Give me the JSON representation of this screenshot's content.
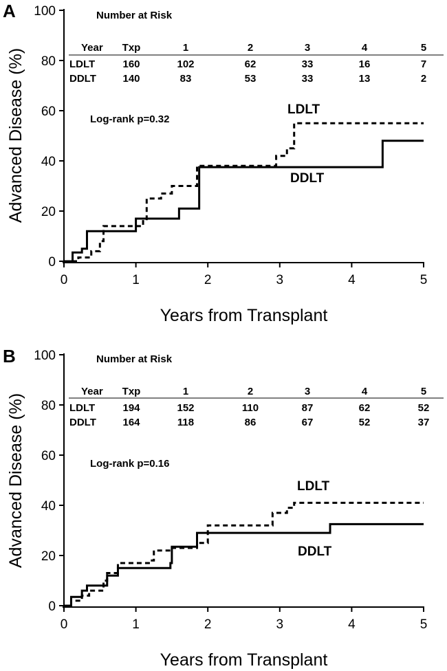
{
  "colors": {
    "line": "#000000",
    "background": "#ffffff"
  },
  "chart_data": [
    {
      "panel": "A",
      "type": "line",
      "step": true,
      "xlabel": "Years from Transplant",
      "ylabel": "Advanced Disease (%)",
      "xlim": [
        0,
        5
      ],
      "ylim": [
        0,
        100
      ],
      "xticks": [
        0,
        1,
        2,
        3,
        4,
        5
      ],
      "yticks": [
        0,
        20,
        40,
        60,
        80,
        100
      ],
      "grid": false,
      "annotation": "Log-rank p=0.32",
      "risk_table": {
        "title": "Number at Risk",
        "header": [
          "Year",
          "Txp",
          "1",
          "2",
          "3",
          "4",
          "5"
        ],
        "rows": [
          [
            "LDLT",
            "160",
            "102",
            "62",
            "33",
            "16",
            "7"
          ],
          [
            "DDLT",
            "140",
            "83",
            "53",
            "33",
            "13",
            "2"
          ]
        ]
      },
      "series": [
        {
          "name": "LDLT",
          "style": "dashed",
          "points": [
            [
              0,
              0
            ],
            [
              0.2,
              1.5
            ],
            [
              0.38,
              4
            ],
            [
              0.5,
              8
            ],
            [
              0.55,
              14
            ],
            [
              1.1,
              16
            ],
            [
              1.15,
              25
            ],
            [
              1.35,
              27
            ],
            [
              1.5,
              30
            ],
            [
              1.85,
              38
            ],
            [
              2.9,
              38
            ],
            [
              2.95,
              42
            ],
            [
              3.1,
              45
            ],
            [
              3.2,
              55
            ],
            [
              5,
              55
            ]
          ]
        },
        {
          "name": "DDLT",
          "style": "solid",
          "points": [
            [
              0,
              0
            ],
            [
              0.12,
              3.5
            ],
            [
              0.25,
              5
            ],
            [
              0.32,
              12
            ],
            [
              0.98,
              12
            ],
            [
              1,
              17
            ],
            [
              1.55,
              17
            ],
            [
              1.6,
              21
            ],
            [
              1.87,
              21
            ],
            [
              1.88,
              37.5
            ],
            [
              4.4,
              37.5
            ],
            [
              4.43,
              48
            ],
            [
              5,
              48
            ]
          ]
        }
      ]
    },
    {
      "panel": "B",
      "type": "line",
      "step": true,
      "xlabel": "Years from Transplant",
      "ylabel": "Advanced Disease (%)",
      "xlim": [
        0,
        5
      ],
      "ylim": [
        0,
        100
      ],
      "xticks": [
        0,
        1,
        2,
        3,
        4,
        5
      ],
      "yticks": [
        0,
        20,
        40,
        60,
        80,
        100
      ],
      "grid": false,
      "annotation": "Log-rank p=0.16",
      "risk_table": {
        "title": "Number at Risk",
        "header": [
          "Year",
          "Txp",
          "1",
          "2",
          "3",
          "4",
          "5"
        ],
        "rows": [
          [
            "LDLT",
            "194",
            "152",
            "110",
            "87",
            "62",
            "52"
          ],
          [
            "DDLT",
            "164",
            "118",
            "86",
            "67",
            "52",
            "37"
          ]
        ]
      },
      "series": [
        {
          "name": "LDLT",
          "style": "dashed",
          "points": [
            [
              0,
              0
            ],
            [
              0.1,
              2
            ],
            [
              0.25,
              4
            ],
            [
              0.35,
              6
            ],
            [
              0.55,
              10
            ],
            [
              0.6,
              13
            ],
            [
              0.75,
              17
            ],
            [
              1.2,
              18
            ],
            [
              1.25,
              22
            ],
            [
              1.45,
              22
            ],
            [
              1.5,
              23
            ],
            [
              1.85,
              25
            ],
            [
              2.0,
              32
            ],
            [
              2.8,
              32
            ],
            [
              2.9,
              37
            ],
            [
              3.1,
              39
            ],
            [
              3.2,
              41
            ],
            [
              5,
              41
            ]
          ]
        },
        {
          "name": "DDLT",
          "style": "solid",
          "points": [
            [
              0,
              0
            ],
            [
              0.1,
              3.5
            ],
            [
              0.25,
              6
            ],
            [
              0.32,
              8
            ],
            [
              0.58,
              8
            ],
            [
              0.6,
              12
            ],
            [
              0.75,
              15
            ],
            [
              1.4,
              15
            ],
            [
              1.48,
              17
            ],
            [
              1.5,
              23.5
            ],
            [
              1.8,
              23.5
            ],
            [
              1.85,
              29
            ],
            [
              3.65,
              29
            ],
            [
              3.7,
              32.5
            ],
            [
              5,
              32.5
            ]
          ]
        }
      ]
    }
  ]
}
